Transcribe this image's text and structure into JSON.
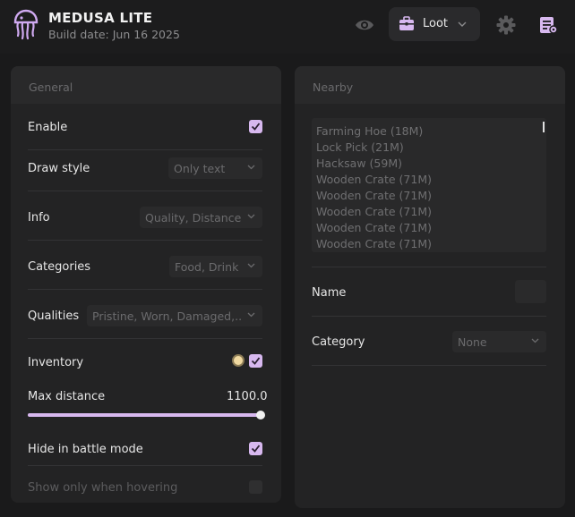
{
  "app": {
    "title": "MEDUSA LITE",
    "build_date": "Build date: Jun 16 2025",
    "accent_color": "#d7b8ef"
  },
  "toolbar": {
    "visibility_icon": "eye-icon",
    "mode_selector": {
      "icon": "briefcase-icon",
      "label": "Loot"
    },
    "settings_icon": "gear-icon",
    "scripts_icon": "script-icon"
  },
  "general": {
    "header": "General",
    "enable": {
      "label": "Enable",
      "checked": true
    },
    "draw_style": {
      "label": "Draw style",
      "value": "Only text"
    },
    "info": {
      "label": "Info",
      "value": "Quality, Distance"
    },
    "categories": {
      "label": "Categories",
      "value": "Food, Drink"
    },
    "qualities": {
      "label": "Qualities",
      "value": "Pristine, Worn, Damaged,..."
    },
    "inventory": {
      "label": "Inventory",
      "checked": true
    },
    "max_distance": {
      "label": "Max distance",
      "value": "1100.0",
      "fraction": 1.0
    },
    "hide_battle": {
      "label": "Hide in battle mode",
      "checked": true
    },
    "show_hovering": {
      "label": "Show only when hovering",
      "checked": false,
      "disabled": true
    }
  },
  "nearby": {
    "header": "Nearby",
    "items": [
      "Farming Hoe (18M)",
      "Lock Pick (21M)",
      "Hacksaw (59M)",
      "Wooden Crate (71M)",
      "Wooden Crate (71M)",
      "Wooden Crate (71M)",
      "Wooden Crate (71M)",
      "Wooden Crate (71M)"
    ],
    "name": {
      "label": "Name",
      "value": ""
    },
    "category": {
      "label": "Category",
      "value": "None"
    }
  }
}
